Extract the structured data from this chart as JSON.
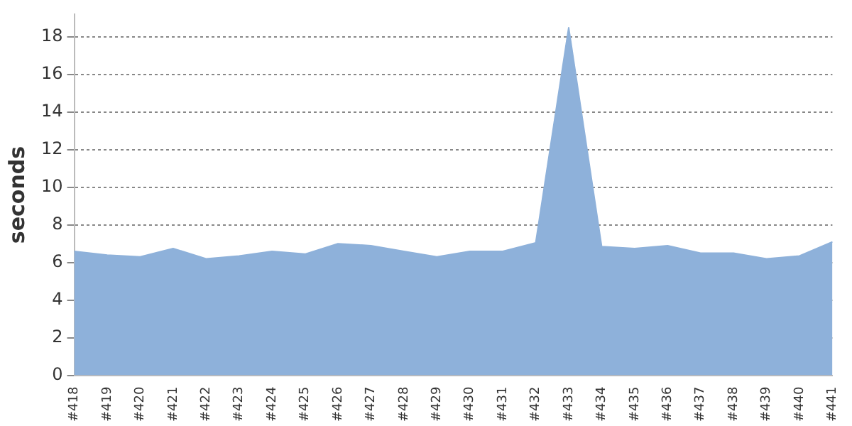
{
  "chart_data": {
    "type": "area",
    "ylabel": "seconds",
    "categories": [
      "#418",
      "#419",
      "#420",
      "#421",
      "#422",
      "#423",
      "#424",
      "#425",
      "#426",
      "#427",
      "#428",
      "#429",
      "#430",
      "#431",
      "#432",
      "#433",
      "#434",
      "#435",
      "#436",
      "#437",
      "#438",
      "#439",
      "#440",
      "#441"
    ],
    "series": [
      {
        "color": "#8eb1da",
        "values": [
          6.6,
          6.4,
          6.3,
          6.75,
          6.2,
          6.35,
          6.6,
          6.45,
          7.0,
          6.9,
          6.6,
          6.3,
          6.6,
          6.6,
          7.05,
          18.5,
          6.85,
          6.75,
          6.9,
          6.5,
          6.5,
          6.2,
          6.35,
          7.1
        ]
      }
    ],
    "ylim": [
      0,
      19.2
    ],
    "yticks": [
      0,
      2,
      4,
      6,
      8,
      10,
      12,
      14,
      16,
      18
    ],
    "grid": "y",
    "legend": false
  }
}
